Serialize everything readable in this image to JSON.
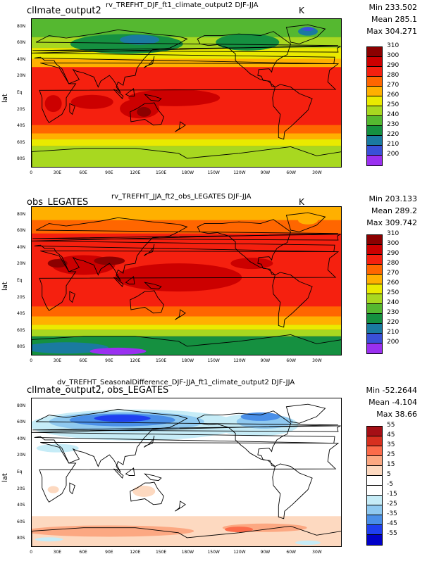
{
  "panels": [
    {
      "title_left": "cllmate_output2",
      "title_center": "rv_TREFHT_DJF_ft1_climate_output2  DJF-JJA",
      "units": "K",
      "stats": {
        "min": "Min 233.502",
        "mean": "Mean 285.1",
        "max": "Max 304.271"
      },
      "ylabel": "lat",
      "colorbar": {
        "labels": [
          "310",
          "300",
          "290",
          "280",
          "270",
          "260",
          "250",
          "240",
          "230",
          "220",
          "210",
          "200"
        ],
        "colors": [
          "#8b0000",
          "#cc0000",
          "#f5200f",
          "#ff6600",
          "#ffb000",
          "#eaea00",
          "#a8d820",
          "#55b830",
          "#159040",
          "#1a7aa0",
          "#3a50d8",
          "#9a30f0"
        ]
      }
    },
    {
      "title_left": "obs_LEGATES",
      "title_center": "rv_TREFHT_JJA_ft2_obs_LEGATES  DJF-JJA",
      "units": "K",
      "stats": {
        "min": "Min 203.133",
        "mean": "Mean 289.2",
        "max": "Max 309.742"
      },
      "ylabel": "lat",
      "colorbar": {
        "labels": [
          "310",
          "300",
          "290",
          "280",
          "270",
          "260",
          "250",
          "240",
          "230",
          "220",
          "210",
          "200"
        ],
        "colors": [
          "#8b0000",
          "#cc0000",
          "#f5200f",
          "#ff6600",
          "#ffb000",
          "#eaea00",
          "#a8d820",
          "#55b830",
          "#159040",
          "#1a7aa0",
          "#3a50d8",
          "#9a30f0"
        ]
      }
    },
    {
      "title_left": "cllmate_output2, obs_LEGATES",
      "title_center": "dv_TREFHT_SeasonalDifference_DJF-JJA_ft1_climate_output2  DJF-JJA",
      "units": "",
      "stats": {
        "min": "Min -52.2644",
        "mean": "Mean -4.104",
        "max": "Max 38.66"
      },
      "ylabel": "lat",
      "colorbar": {
        "labels": [
          "55",
          "45",
          "35",
          "25",
          "15",
          "5",
          "-5",
          "-15",
          "-25",
          "-35",
          "-45",
          "-55"
        ],
        "colors": [
          "#a50f15",
          "#d7301f",
          "#fc6b4a",
          "#fca882",
          "#fdd9c0",
          "#ffffff",
          "#ffffff",
          "#c6ecf7",
          "#8fc9f0",
          "#4a8fe8",
          "#1f3ff0",
          "#0000c8"
        ]
      }
    }
  ],
  "lat_ticks": [
    "80N",
    "60N",
    "40N",
    "20N",
    "Eq",
    "20S",
    "40S",
    "60S",
    "80S"
  ],
  "lon_ticks": [
    "0",
    "30E",
    "60E",
    "90E",
    "120E",
    "150E",
    "180W",
    "150W",
    "120W",
    "90W",
    "60W",
    "30W"
  ]
}
